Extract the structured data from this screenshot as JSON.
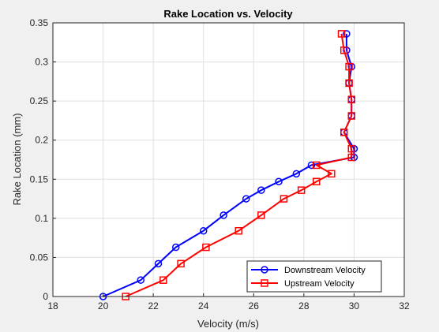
{
  "chart_data": {
    "type": "line",
    "title": "Rake Location vs. Velocity",
    "xlabel": "Velocity (m/s)",
    "ylabel": "Rake Location (mm)",
    "xlim": [
      18,
      32
    ],
    "ylim": [
      0,
      0.35
    ],
    "xticks": [
      18,
      20,
      22,
      24,
      26,
      28,
      30,
      32
    ],
    "xtick_labels": [
      "18",
      "20",
      "22",
      "24",
      "26",
      "28",
      "30",
      "32"
    ],
    "yticks": [
      0,
      0.05,
      0.1,
      0.15,
      0.2,
      0.25,
      0.3,
      0.35
    ],
    "ytick_labels": [
      "0",
      "0.05",
      "0.1",
      "0.15",
      "0.2",
      "0.25",
      "0.3",
      "0.35"
    ],
    "grid": true,
    "legend_position": "bottom-right",
    "series": [
      {
        "name": "Downstream Velocity",
        "color": "#0000ff",
        "marker": "circle",
        "points": [
          [
            20.0,
            0.0
          ],
          [
            21.5,
            0.021
          ],
          [
            22.2,
            0.042
          ],
          [
            22.9,
            0.063
          ],
          [
            24.0,
            0.084
          ],
          [
            24.8,
            0.104
          ],
          [
            25.7,
            0.125
          ],
          [
            26.3,
            0.136
          ],
          [
            27.0,
            0.147
          ],
          [
            27.7,
            0.157
          ],
          [
            28.3,
            0.168
          ],
          [
            30.0,
            0.178
          ],
          [
            30.0,
            0.189
          ],
          [
            29.6,
            0.21
          ],
          [
            29.9,
            0.231
          ],
          [
            29.9,
            0.252
          ],
          [
            29.8,
            0.273
          ],
          [
            29.9,
            0.294
          ],
          [
            29.7,
            0.315
          ],
          [
            29.7,
            0.336
          ]
        ]
      },
      {
        "name": "Upstream Velocity",
        "color": "#ff0000",
        "marker": "square",
        "points": [
          [
            20.9,
            0.0
          ],
          [
            22.4,
            0.021
          ],
          [
            23.1,
            0.042
          ],
          [
            24.1,
            0.063
          ],
          [
            25.4,
            0.084
          ],
          [
            26.3,
            0.104
          ],
          [
            27.2,
            0.125
          ],
          [
            27.9,
            0.136
          ],
          [
            28.5,
            0.147
          ],
          [
            29.1,
            0.157
          ],
          [
            28.5,
            0.168
          ],
          [
            29.9,
            0.178
          ],
          [
            29.9,
            0.189
          ],
          [
            29.6,
            0.21
          ],
          [
            29.9,
            0.231
          ],
          [
            29.9,
            0.252
          ],
          [
            29.8,
            0.273
          ],
          [
            29.8,
            0.294
          ],
          [
            29.6,
            0.315
          ],
          [
            29.5,
            0.336
          ]
        ]
      }
    ]
  }
}
